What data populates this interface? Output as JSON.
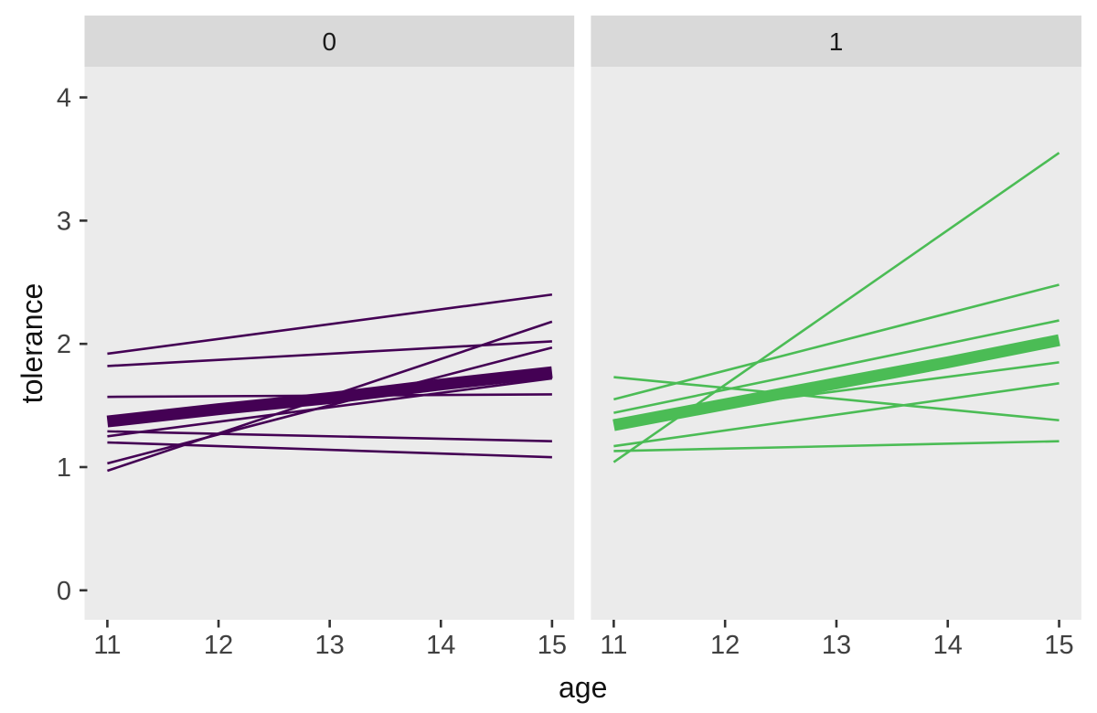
{
  "chart_data": {
    "type": "line",
    "title": "",
    "xlabel": "age",
    "ylabel": "tolerance",
    "x_ticks": [
      11,
      12,
      13,
      14,
      15
    ],
    "y_ticks": [
      0,
      1,
      2,
      3,
      4
    ],
    "xlim": [
      10.8,
      15.2
    ],
    "ylim": [
      -0.24,
      4.25
    ],
    "grid": "off",
    "legend": "none",
    "colors": {
      "panel_background": "#ebebeb",
      "strip_background": "#d9d9d9",
      "axis_text": "#404040",
      "tick_mark": "#333333",
      "facet_0_line": "#440154",
      "facet_1_line": "#4bbc55"
    },
    "facets": [
      {
        "label": "0",
        "color": "#440154",
        "individual_lines": [
          {
            "x": [
              11,
              15
            ],
            "y": [
              1.92,
              2.4
            ]
          },
          {
            "x": [
              11,
              15
            ],
            "y": [
              1.82,
              2.02
            ]
          },
          {
            "x": [
              11,
              15
            ],
            "y": [
              1.57,
              1.59
            ]
          },
          {
            "x": [
              11,
              15
            ],
            "y": [
              1.29,
              1.21
            ]
          },
          {
            "x": [
              11,
              15
            ],
            "y": [
              1.25,
              1.72
            ]
          },
          {
            "x": [
              11,
              15
            ],
            "y": [
              1.2,
              1.08
            ]
          },
          {
            "x": [
              11,
              15
            ],
            "y": [
              1.03,
              1.97
            ]
          },
          {
            "x": [
              11,
              15
            ],
            "y": [
              0.97,
              2.18
            ]
          }
        ],
        "mean_line": {
          "x": [
            11,
            12,
            13,
            14,
            15
          ],
          "y": [
            1.37,
            1.47,
            1.56,
            1.67,
            1.77
          ]
        }
      },
      {
        "label": "1",
        "color": "#4bbc55",
        "individual_lines": [
          {
            "x": [
              11,
              15
            ],
            "y": [
              1.04,
              3.55
            ]
          },
          {
            "x": [
              11,
              15
            ],
            "y": [
              1.55,
              2.48
            ]
          },
          {
            "x": [
              11,
              15
            ],
            "y": [
              1.44,
              2.19
            ]
          },
          {
            "x": [
              11,
              15
            ],
            "y": [
              1.38,
              1.85
            ]
          },
          {
            "x": [
              11,
              15
            ],
            "y": [
              1.73,
              1.38
            ]
          },
          {
            "x": [
              11,
              15
            ],
            "y": [
              1.17,
              1.68
            ]
          },
          {
            "x": [
              11,
              15
            ],
            "y": [
              1.13,
              1.21
            ]
          }
        ],
        "mean_line": {
          "x": [
            11,
            12,
            13,
            14,
            15
          ],
          "y": [
            1.34,
            1.51,
            1.68,
            1.85,
            2.03
          ]
        }
      }
    ]
  }
}
